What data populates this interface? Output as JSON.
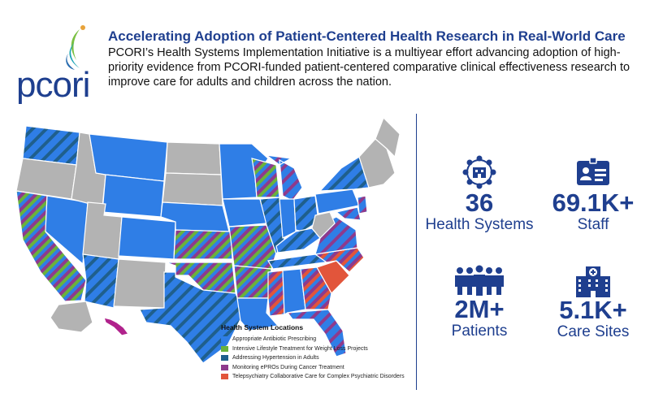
{
  "header": {
    "logo_text": "pcori",
    "title": "Accelerating Adoption of Patient-Centered Health Research in Real-World Care",
    "description": "PCORI’s Health Systems Implementation Initiative is a multiyear effort advancing adoption of high-priority evidence from PCORI-funded patient-centered comparative clinical effectiveness research to improve care for adults and children across the nation."
  },
  "legend": {
    "title": "Health System Locations",
    "items": [
      {
        "label": "Appropriate Antibiotic Prescribing",
        "color": "#2f7ee6"
      },
      {
        "label": "Intensive Lifestyle Treatment for Weight Loss Projects",
        "color": "#6ab23c"
      },
      {
        "label": "Addressing Hypertension in Adults",
        "color": "#1f5f8c"
      },
      {
        "label": "Monitoring ePROs During Cancer Treatment",
        "color": "#8e3a8c"
      },
      {
        "label": "Telepsychiatry Collaborative Care for Complex Psychiatric Disorders",
        "color": "#e2553b"
      }
    ]
  },
  "stats": {
    "health_systems": {
      "value": "36",
      "label": "Health Systems",
      "icon": "network-icon"
    },
    "staff": {
      "value": "69.1K+",
      "label": "Staff",
      "icon": "id-badge-icon"
    },
    "patients": {
      "value": "2M+",
      "label": "Patients",
      "icon": "people-group-icon"
    },
    "care_sites": {
      "value": "5.1K+",
      "label": "Care Sites",
      "icon": "hospital-icon"
    }
  },
  "colors": {
    "brand_blue": "#1f3f8f",
    "state_gray": "#b3b3b3",
    "state_blue": "#2f7ee6",
    "hawaii": "#b0228c"
  }
}
